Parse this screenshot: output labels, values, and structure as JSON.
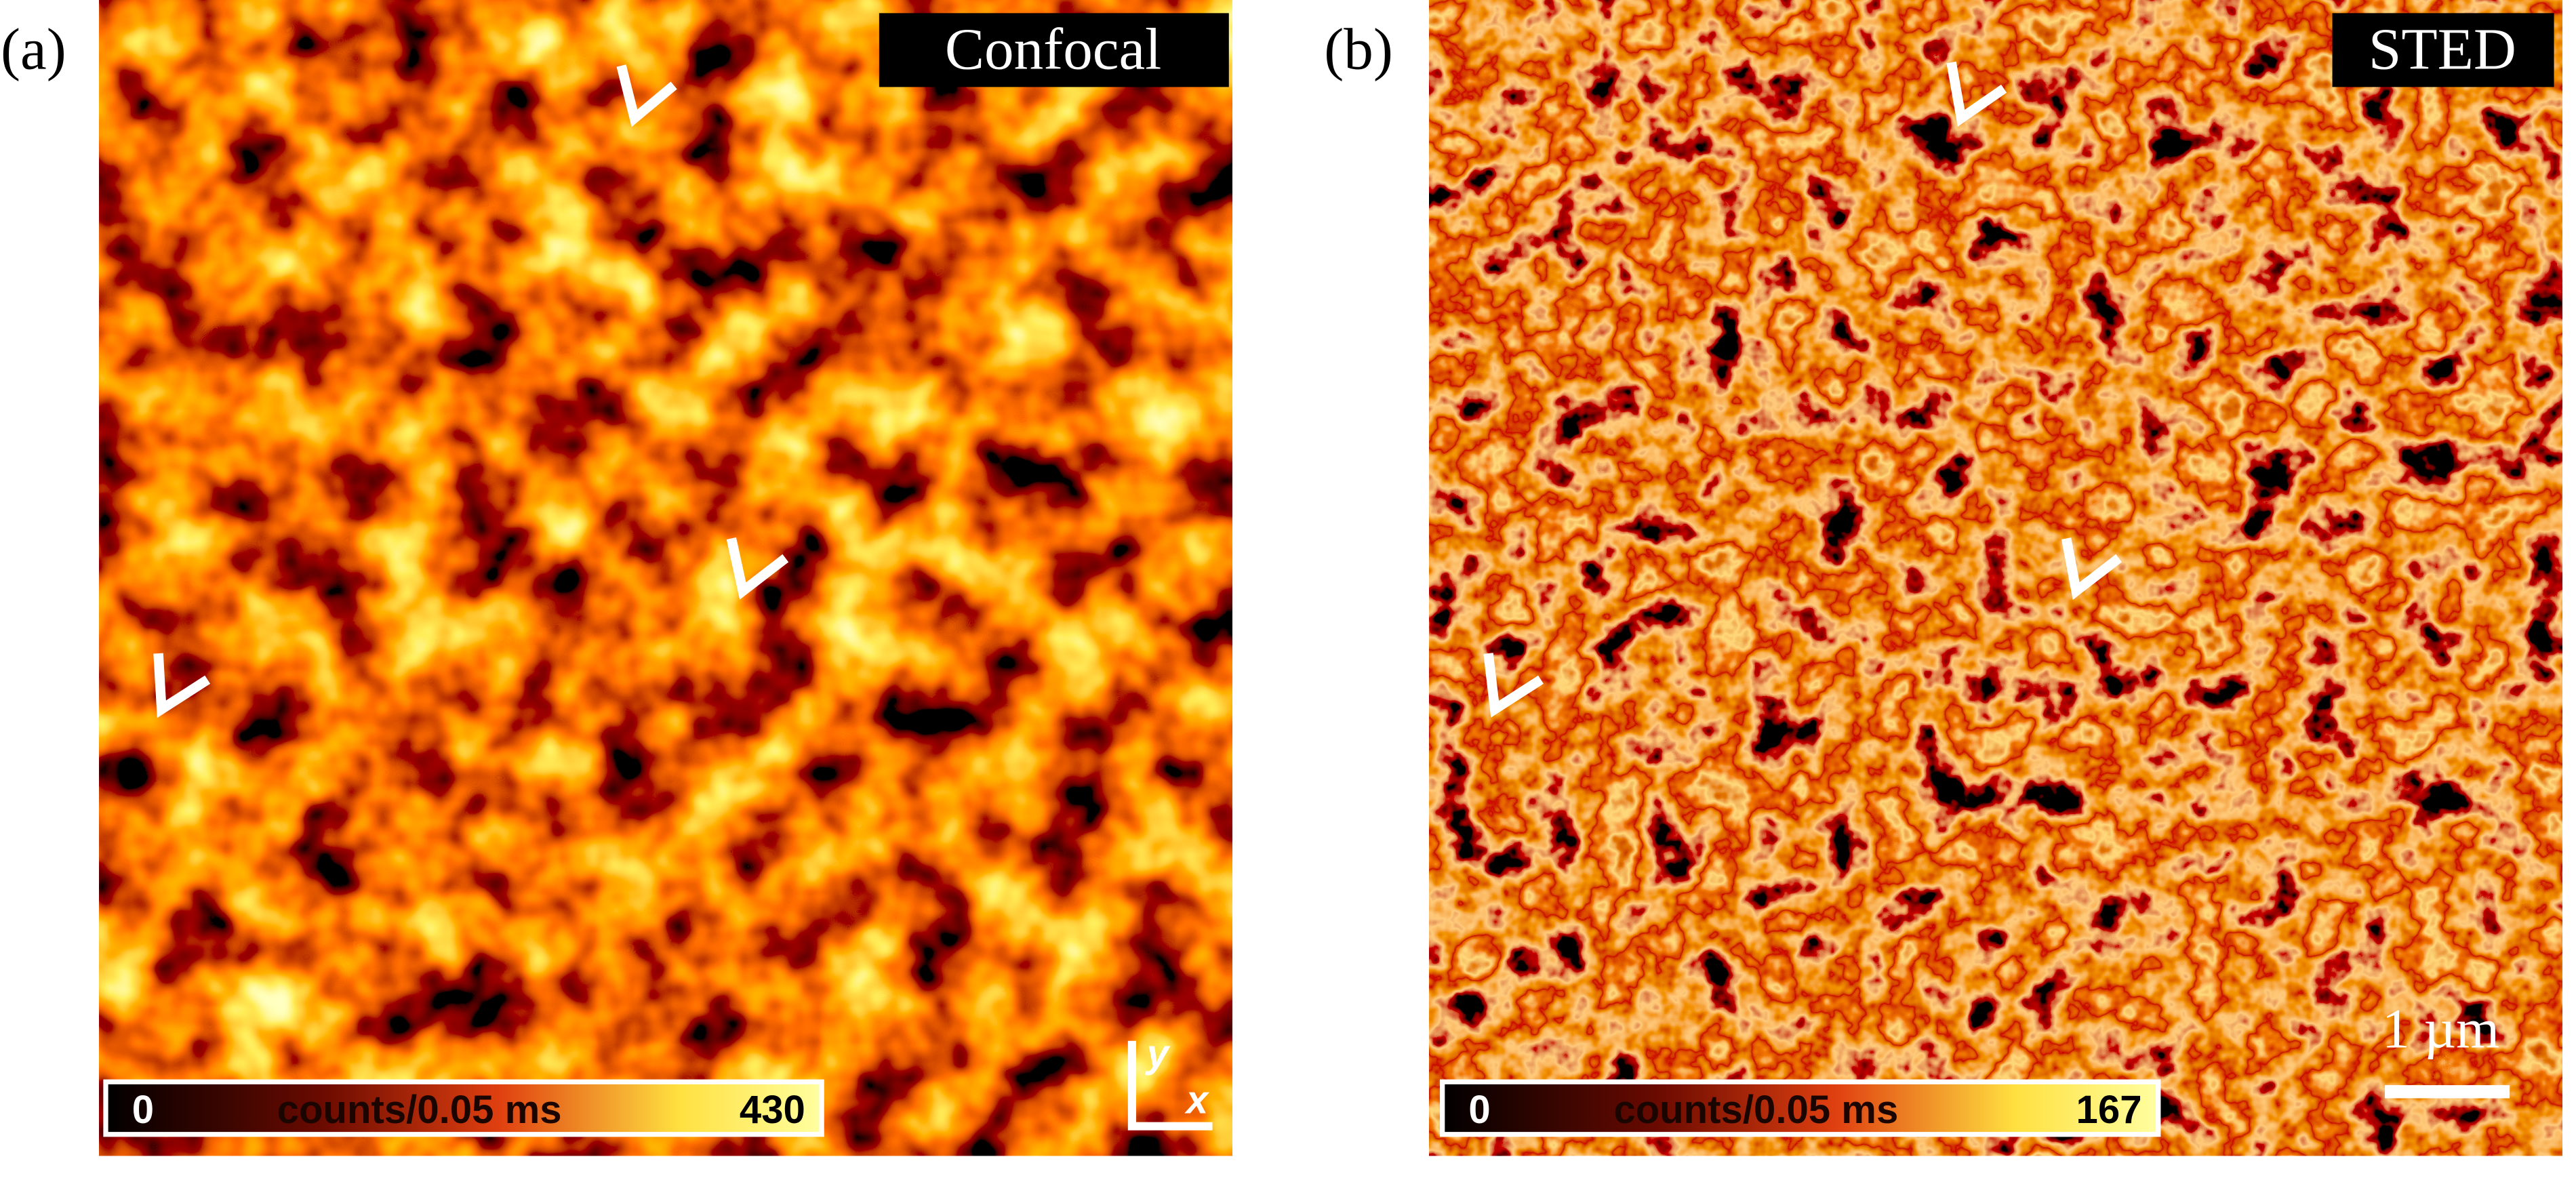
{
  "panels": [
    {
      "label": "(a)",
      "title": "Confocal",
      "colorbar": {
        "min": 0,
        "unit": "counts/0.05 ms",
        "max": 430
      },
      "axes": {
        "y": "y",
        "x": "x"
      }
    },
    {
      "label": "(b)",
      "title": "STED",
      "colorbar": {
        "min": 0,
        "unit": "counts/0.05 ms",
        "max": 167
      },
      "scale_bar": "1 µm"
    }
  ]
}
